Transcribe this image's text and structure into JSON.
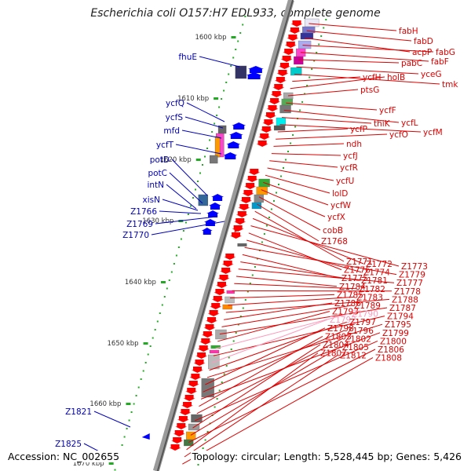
{
  "title": "Escherichia coli O157:H7 EDL933, complete genome",
  "accession_text": "Accession: NC_002655",
  "summary_text": "Topology: circular; Length: 5,528,445 bp; Genes: 5,426",
  "colors": {
    "left_gene_label": "#0000bb",
    "right_gene_label": "#dd0000",
    "pseudo_gene_label": "#ff99bb",
    "scale_dot": "#22aa22",
    "backbone": "#9a9a9a"
  },
  "scale_ticks": [
    "1600 kbp",
    "1610 kbp",
    "1620 kbp",
    "1630 kbp",
    "1640 kbp",
    "1650 kbp",
    "1660 kbp",
    "1670 kbp"
  ],
  "left_genes": [
    "fhuE",
    "ycfQ",
    "ycfS",
    "mfd",
    "ycfT",
    "potD",
    "potC",
    "intN",
    "xisN",
    "Z1766",
    "Z1769",
    "Z1770",
    "Z1821",
    "Z1825"
  ],
  "right_genes": [
    "fabH",
    "fabD",
    "acpP",
    "fabG",
    "fabF",
    "pabC",
    "yceG",
    "tmk",
    "ycfH",
    "holB",
    "ptsG",
    "ycfF",
    "ycfL",
    "thiK",
    "ycfM",
    "ycfP",
    "ycfO",
    "ndh",
    "ycfJ",
    "ycfR",
    "ycfU",
    "lolD",
    "ycfW",
    "ycfX",
    "cobB",
    "Z1768",
    "Z1771",
    "Z1772",
    "Z1773",
    "Z1776",
    "Z1774",
    "Z1779",
    "Z1775",
    "Z1781",
    "Z1777",
    "Z1784",
    "Z1782",
    "Z1778",
    "Z1785",
    "Z1783",
    "Z1788",
    "Z1786",
    "Z1789",
    "Z1787",
    "Z1793",
    "Z1790",
    "Z1794",
    "Z1792",
    "Z1797",
    "Z1795",
    "Z1798",
    "Z1796",
    "Z1799",
    "Z1803",
    "Z1802",
    "Z1800",
    "Z1804",
    "Z1805",
    "Z1806",
    "Z1807",
    "Z1812",
    "Z1808"
  ],
  "pseudo_genes": [
    "Z1790",
    "Z1792"
  ]
}
